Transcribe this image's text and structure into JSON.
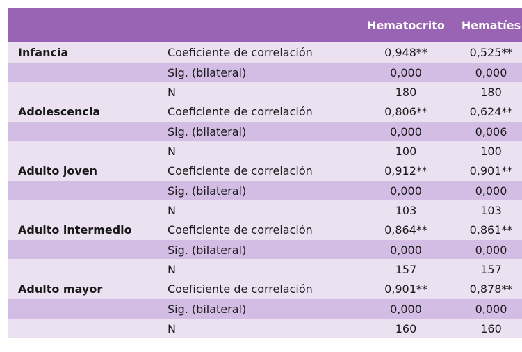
{
  "header": {
    "col_hematocrito": "Hematocrito",
    "col_hematies": "Hematíes"
  },
  "groups": [
    {
      "name": "Infancia",
      "rows": [
        {
          "stat": "Coeficiente de correlación",
          "hematocrito": "0,948**",
          "hematies": "0,525**"
        },
        {
          "stat": "Sig. (bilateral)",
          "hematocrito": "0,000",
          "hematies": "0,000"
        },
        {
          "stat": "N",
          "hematocrito": "180",
          "hematies": "180"
        }
      ]
    },
    {
      "name": "Adolescencia",
      "rows": [
        {
          "stat": "Coeficiente de correlación",
          "hematocrito": "0,806**",
          "hematies": "0,624**"
        },
        {
          "stat": "Sig. (bilateral)",
          "hematocrito": "0,000",
          "hematies": "0,006"
        },
        {
          "stat": "N",
          "hematocrito": "100",
          "hematies": "100"
        }
      ]
    },
    {
      "name": "Adulto joven",
      "rows": [
        {
          "stat": "Coeficiente de correlación",
          "hematocrito": "0,912**",
          "hematies": "0,901**"
        },
        {
          "stat": "Sig. (bilateral)",
          "hematocrito": "0,000",
          "hematies": "0,000"
        },
        {
          "stat": "N",
          "hematocrito": "103",
          "hematies": "103"
        }
      ]
    },
    {
      "name": "Adulto intermedio",
      "rows": [
        {
          "stat": "Coeficiente de correlación",
          "hematocrito": "0,864**",
          "hematies": "0,861**"
        },
        {
          "stat": "Sig. (bilateral)",
          "hematocrito": "0,000",
          "hematies": "0,000"
        },
        {
          "stat": "N",
          "hematocrito": "157",
          "hematies": "157"
        }
      ]
    },
    {
      "name": "Adulto mayor",
      "rows": [
        {
          "stat": "Coeficiente de correlación",
          "hematocrito": "0,901**",
          "hematies": "0,878**"
        },
        {
          "stat": "Sig. (bilateral)",
          "hematocrito": "0,000",
          "hematies": "0,000"
        },
        {
          "stat": "N",
          "hematocrito": "160",
          "hematies": "160"
        }
      ]
    }
  ]
}
